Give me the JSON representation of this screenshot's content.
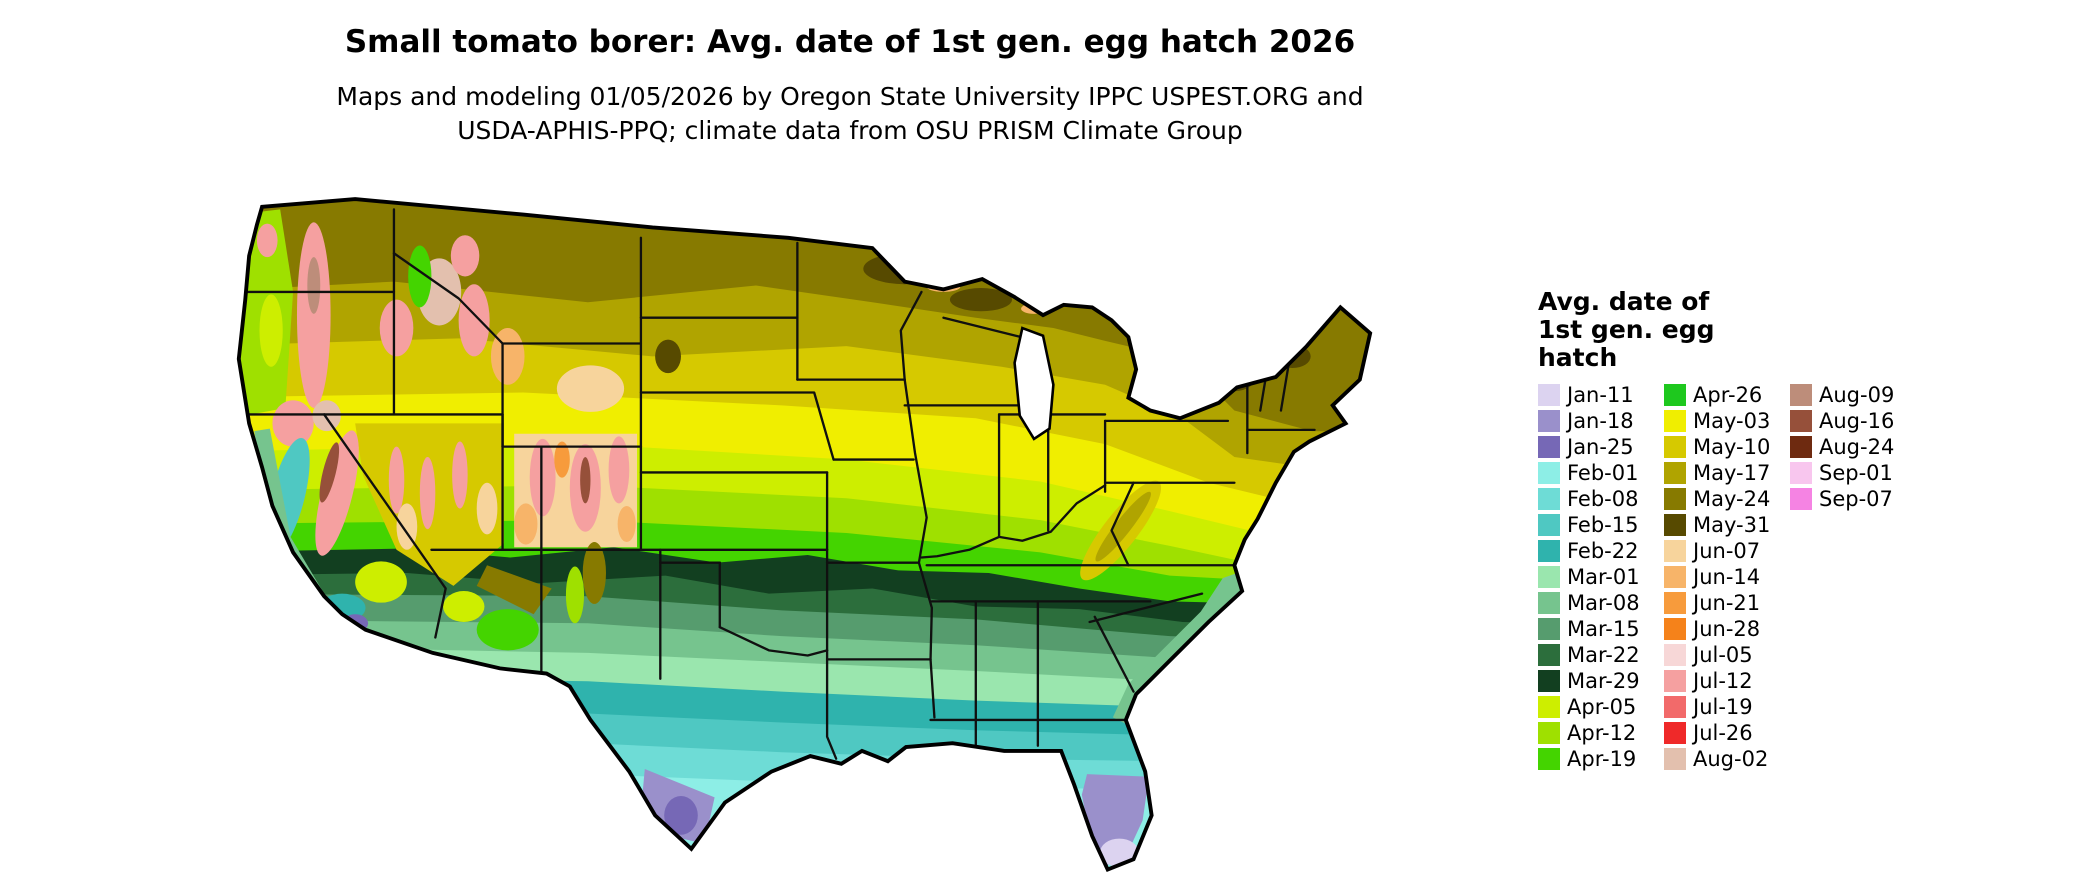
{
  "title": "Small tomato borer: Avg. date of 1st gen. egg hatch 2026",
  "subtitle_lines": [
    "Maps and modeling 01/05/2026 by Oregon State University IPPC USPEST.ORG and",
    "USDA-APHIS-PPQ; climate data from OSU PRISM Climate Group"
  ],
  "legend": {
    "title_lines": [
      "Avg. date of",
      "1st gen. egg",
      "hatch"
    ],
    "columns": [
      [
        {
          "label": "Jan-11",
          "color": "#dcd3f0"
        },
        {
          "label": "Jan-18",
          "color": "#9a90cb"
        },
        {
          "label": "Jan-25",
          "color": "#7668b6"
        },
        {
          "label": "Feb-01",
          "color": "#8deee6"
        },
        {
          "label": "Feb-08",
          "color": "#6edcd6"
        },
        {
          "label": "Feb-15",
          "color": "#4fc8c2"
        },
        {
          "label": "Feb-22",
          "color": "#2fb3ad"
        },
        {
          "label": "Mar-01",
          "color": "#9ae6ae"
        },
        {
          "label": "Mar-08",
          "color": "#76c48e"
        },
        {
          "label": "Mar-15",
          "color": "#569c6e"
        },
        {
          "label": "Mar-22",
          "color": "#2c6e3c"
        },
        {
          "label": "Mar-29",
          "color": "#123f20"
        },
        {
          "label": "Apr-05",
          "color": "#cdee00"
        },
        {
          "label": "Apr-12",
          "color": "#9fe000"
        },
        {
          "label": "Apr-19",
          "color": "#44d400"
        }
      ],
      [
        {
          "label": "Apr-26",
          "color": "#1ec81e"
        },
        {
          "label": "May-03",
          "color": "#f0ee00"
        },
        {
          "label": "May-10",
          "color": "#d6c900"
        },
        {
          "label": "May-17",
          "color": "#b0a400"
        },
        {
          "label": "May-24",
          "color": "#877a00"
        },
        {
          "label": "May-31",
          "color": "#574a00"
        },
        {
          "label": "Jun-07",
          "color": "#f7d49c"
        },
        {
          "label": "Jun-14",
          "color": "#f7b469"
        },
        {
          "label": "Jun-21",
          "color": "#f79b3c"
        },
        {
          "label": "Jun-28",
          "color": "#f5821a"
        },
        {
          "label": "Jul-05",
          "color": "#f7d7d7"
        },
        {
          "label": "Jul-12",
          "color": "#f5a0a0"
        },
        {
          "label": "Jul-19",
          "color": "#f26a6a"
        },
        {
          "label": "Jul-26",
          "color": "#ef2929"
        },
        {
          "label": "Aug-02",
          "color": "#e3c0ae"
        }
      ],
      [
        {
          "label": "Aug-09",
          "color": "#bd8d7a"
        },
        {
          "label": "Aug-16",
          "color": "#96503a"
        },
        {
          "label": "Aug-24",
          "color": "#6e2a10"
        },
        {
          "label": "Sep-01",
          "color": "#f8c6ee"
        },
        {
          "label": "Sep-07",
          "color": "#f583e3"
        }
      ]
    ]
  },
  "map": {
    "band_order_north_to_south": [
      "May-24",
      "May-17",
      "May-10",
      "May-03",
      "Apr-05",
      "Apr-12",
      "Apr-19",
      "Mar-29",
      "Mar-22",
      "Mar-15",
      "Mar-08",
      "Mar-01",
      "Feb-22",
      "Feb-15",
      "Feb-08",
      "Feb-01",
      "Jan-25",
      "Jan-18",
      "Jan-11"
    ]
  }
}
